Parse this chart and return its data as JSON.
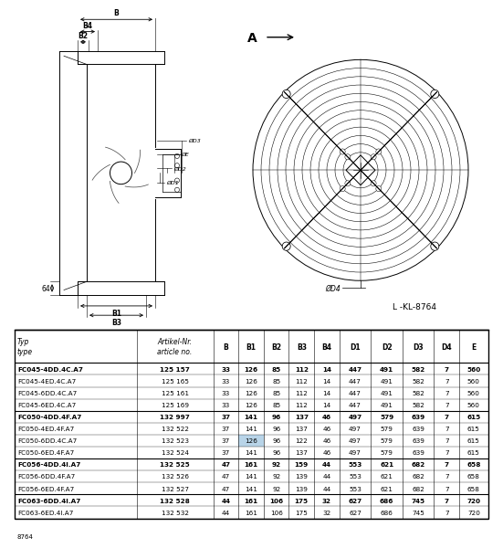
{
  "diagram_label": "L -KL-8764",
  "footer_label": "8764",
  "table_rows": [
    [
      "FC045-4DD.4C.A7",
      "125 157",
      "33",
      "126",
      "85",
      "112",
      "14",
      "447",
      "491",
      "582",
      "7",
      "560"
    ],
    [
      "FC045-4ED.4C.A7",
      "125 165",
      "33",
      "126",
      "85",
      "112",
      "14",
      "447",
      "491",
      "582",
      "7",
      "560"
    ],
    [
      "FC045-6DD.4C.A7",
      "125 161",
      "33",
      "126",
      "85",
      "112",
      "14",
      "447",
      "491",
      "582",
      "7",
      "560"
    ],
    [
      "FC045-6ED.4C.A7",
      "125 169",
      "33",
      "126",
      "85",
      "112",
      "14",
      "447",
      "491",
      "582",
      "7",
      "560"
    ],
    [
      "FC050-4DD.4F.A7",
      "132 997",
      "37",
      "141",
      "96",
      "137",
      "46",
      "497",
      "579",
      "639",
      "7",
      "615"
    ],
    [
      "FC050-4ED.4F.A7",
      "132 522",
      "37",
      "141",
      "96",
      "137",
      "46",
      "497",
      "579",
      "639",
      "7",
      "615"
    ],
    [
      "FC050-6DD.4C.A7",
      "132 523",
      "37",
      "126",
      "96",
      "122",
      "46",
      "497",
      "579",
      "639",
      "7",
      "615"
    ],
    [
      "FC050-6ED.4F.A7",
      "132 524",
      "37",
      "141",
      "96",
      "137",
      "46",
      "497",
      "579",
      "639",
      "7",
      "615"
    ],
    [
      "FC056-4DD.4I.A7",
      "132 525",
      "47",
      "161",
      "92",
      "159",
      "44",
      "553",
      "621",
      "682",
      "7",
      "658"
    ],
    [
      "FC056-6DD.4F.A7",
      "132 526",
      "47",
      "141",
      "92",
      "139",
      "44",
      "553",
      "621",
      "682",
      "7",
      "658"
    ],
    [
      "FC056-6ED.4F.A7",
      "132 527",
      "47",
      "141",
      "92",
      "139",
      "44",
      "553",
      "621",
      "682",
      "7",
      "658"
    ],
    [
      "FC063-6DD.4I.A7",
      "132 528",
      "44",
      "161",
      "106",
      "175",
      "32",
      "627",
      "686",
      "745",
      "7",
      "720"
    ],
    [
      "FC063-6ED.4I.A7",
      "132 532",
      "44",
      "161",
      "106",
      "175",
      "32",
      "627",
      "686",
      "745",
      "7",
      "720"
    ]
  ],
  "group_separators": [
    3,
    7,
    10
  ],
  "highlight_row": 6,
  "highlight_col": 3,
  "highlight_color": "#b8d4e8",
  "bg_color": "#ffffff",
  "row_bold_indices": [
    0,
    4,
    8,
    11
  ],
  "col_widths": [
    1.35,
    0.85,
    0.28,
    0.28,
    0.28,
    0.28,
    0.28,
    0.35,
    0.35,
    0.35,
    0.28,
    0.32
  ]
}
